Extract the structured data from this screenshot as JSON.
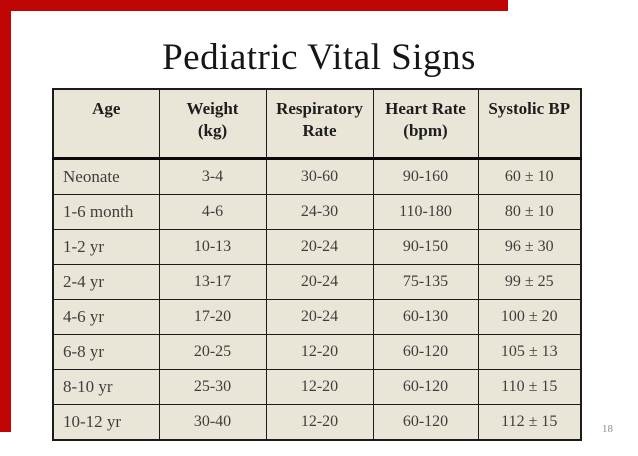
{
  "slide": {
    "title": "Pediatric Vital Signs",
    "page_number": "18",
    "accent_color": "#C00505",
    "table_bg": "#E9E6D8"
  },
  "table": {
    "headers": [
      "Age",
      "Weight\n(kg)",
      "Respiratory\nRate",
      "Heart Rate\n(bpm)",
      "Systolic BP"
    ],
    "rows": [
      [
        "Neonate",
        "3-4",
        "30-60",
        "90-160",
        "60 ± 10"
      ],
      [
        "1-6 month",
        "4-6",
        "24-30",
        "110-180",
        "80 ± 10"
      ],
      [
        "1-2 yr",
        "10-13",
        "20-24",
        "90-150",
        "96 ± 30"
      ],
      [
        "2-4 yr",
        "13-17",
        "20-24",
        "75-135",
        "99 ± 25"
      ],
      [
        "4-6 yr",
        "17-20",
        "20-24",
        "60-130",
        "100 ± 20"
      ],
      [
        "6-8 yr",
        "20-25",
        "12-20",
        "60-120",
        "105 ± 13"
      ],
      [
        "8-10 yr",
        "25-30",
        "12-20",
        "60-120",
        "110 ± 15"
      ],
      [
        "10-12 yr",
        "30-40",
        "12-20",
        "60-120",
        "112 ± 15"
      ]
    ]
  }
}
